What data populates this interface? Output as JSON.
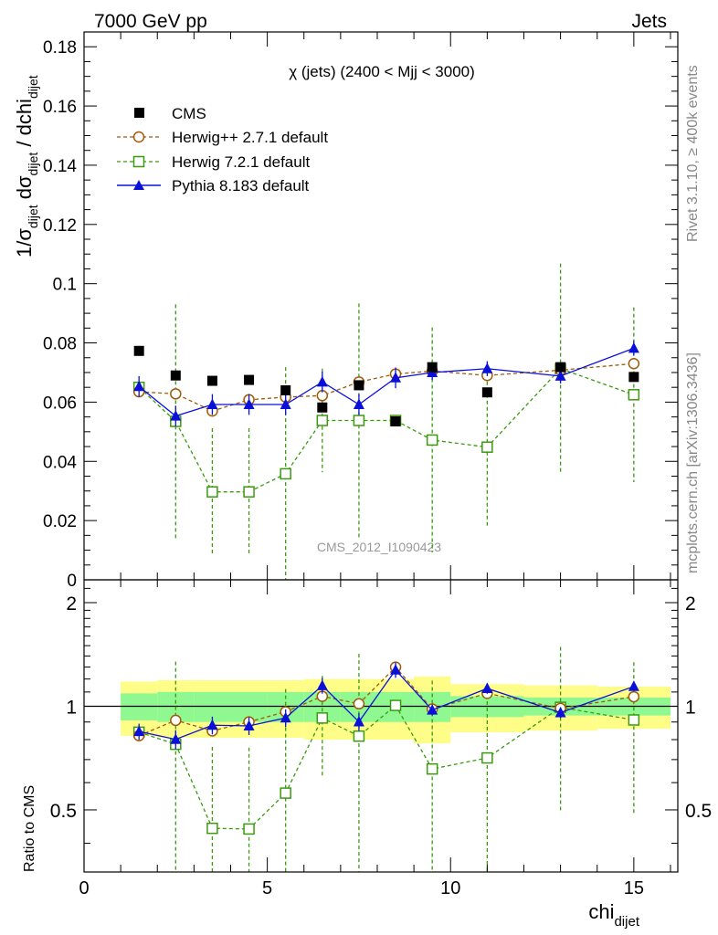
{
  "header": {
    "left_label": "7000 GeV pp",
    "right_label": "Jets"
  },
  "side_labels": {
    "rivet": "Rivet 3.1.10, ≥ 400k events",
    "mcplots": "mcplots.cern.ch [arXiv:1306.3436]"
  },
  "chart_data": {
    "type": "scatter",
    "title": "χ (jets) (2400 < Mjj < 3000)",
    "watermark": "CMS_2012_I1090423",
    "ylabel_parts": {
      "a": "1/σ",
      "b": "dijet",
      "c": " dσ",
      "d": "dijet",
      "e": " / dchi",
      "f": "dijet"
    },
    "xlabel_main": "chi",
    "xlabel_sub": "dijet",
    "ratio_ylabel": "Ratio to CMS",
    "xlim": [
      0,
      16.2
    ],
    "ylim": [
      0,
      0.185
    ],
    "ratio_ylim": [
      0.33,
      2.33
    ],
    "x_ticks": [
      0,
      5,
      10,
      15
    ],
    "y_ticks": [
      0,
      0.02,
      0.04,
      0.06,
      0.08,
      0.1,
      0.12,
      0.14,
      0.16,
      0.18
    ],
    "y_tick_labels": [
      "0",
      "0.02",
      "0.04",
      "0.06",
      "0.08",
      "0.1",
      "0.12",
      "0.14",
      "0.16",
      "0.18"
    ],
    "ratio_ticks": [
      0.5,
      1,
      2
    ],
    "ratio_tick_labels": [
      "0.5",
      "1",
      "2"
    ],
    "x_tick_labels": [
      "0",
      "5",
      "10",
      "15"
    ],
    "bin_edges": [
      1,
      2,
      3,
      4,
      5,
      6,
      7,
      8,
      9,
      10,
      12,
      14,
      16
    ],
    "band_inner_half": [
      0.09,
      0.1,
      0.1,
      0.1,
      0.1,
      0.1,
      0.1,
      0.1,
      0.1,
      0.07,
      0.06,
      0.06
    ],
    "band_outer_half": [
      0.18,
      0.19,
      0.19,
      0.19,
      0.19,
      0.2,
      0.2,
      0.2,
      0.22,
      0.16,
      0.15,
      0.14
    ],
    "x": [
      1.5,
      2.5,
      3.5,
      4.5,
      5.5,
      6.5,
      7.5,
      8.5,
      9.5,
      11,
      13,
      15
    ],
    "series": [
      {
        "name": "CMS",
        "color": "#000000",
        "marker": "square-filled",
        "line": "none",
        "values": [
          0.0773,
          0.069,
          0.0672,
          0.0675,
          0.064,
          0.0582,
          0.0657,
          0.0535,
          0.0718,
          0.0633,
          0.0718,
          0.0685
        ],
        "errors": [
          0,
          0,
          0,
          0,
          0,
          0,
          0,
          0,
          0,
          0,
          0,
          0
        ]
      },
      {
        "name": "Herwig++ 2.7.1 default",
        "color": "#a05a0a",
        "marker": "circle-open",
        "line": "dashed",
        "values": [
          0.0635,
          0.0628,
          0.057,
          0.0608,
          0.0617,
          0.0622,
          0.0668,
          0.0695,
          0.0705,
          0.069,
          0.0708,
          0.073
        ],
        "errors": [
          0.0008,
          0.0008,
          0.0008,
          0.0008,
          0.0008,
          0.0008,
          0.0008,
          0.0008,
          0.0008,
          0.0008,
          0.0008,
          0.0008
        ]
      },
      {
        "name": "Herwig 7.2.1 default",
        "color": "#3a9a10",
        "marker": "square-open",
        "line": "dashed",
        "values": [
          0.065,
          0.0535,
          0.0297,
          0.0297,
          0.0358,
          0.0538,
          0.0538,
          0.0538,
          0.0472,
          0.0448,
          0.0713,
          0.0625
        ],
        "errors": [
          0.0007,
          0.0395,
          0.0215,
          0.0215,
          0.036,
          0.0175,
          0.0395,
          0.0002,
          0.038,
          0.0265,
          0.0355,
          0.0295
        ]
      },
      {
        "name": "Pythia 8.183 default",
        "color": "#0b10d8",
        "marker": "triangle-filled",
        "line": "solid",
        "values": [
          0.0653,
          0.0553,
          0.0592,
          0.0592,
          0.0592,
          0.0668,
          0.0592,
          0.0682,
          0.07,
          0.0713,
          0.0688,
          0.0782
        ],
        "errors": [
          0.0035,
          0.0035,
          0.0035,
          0.0035,
          0.0035,
          0.0035,
          0.0035,
          0.0035,
          0.0025,
          0.0025,
          0.0025,
          0.0025
        ]
      }
    ]
  }
}
